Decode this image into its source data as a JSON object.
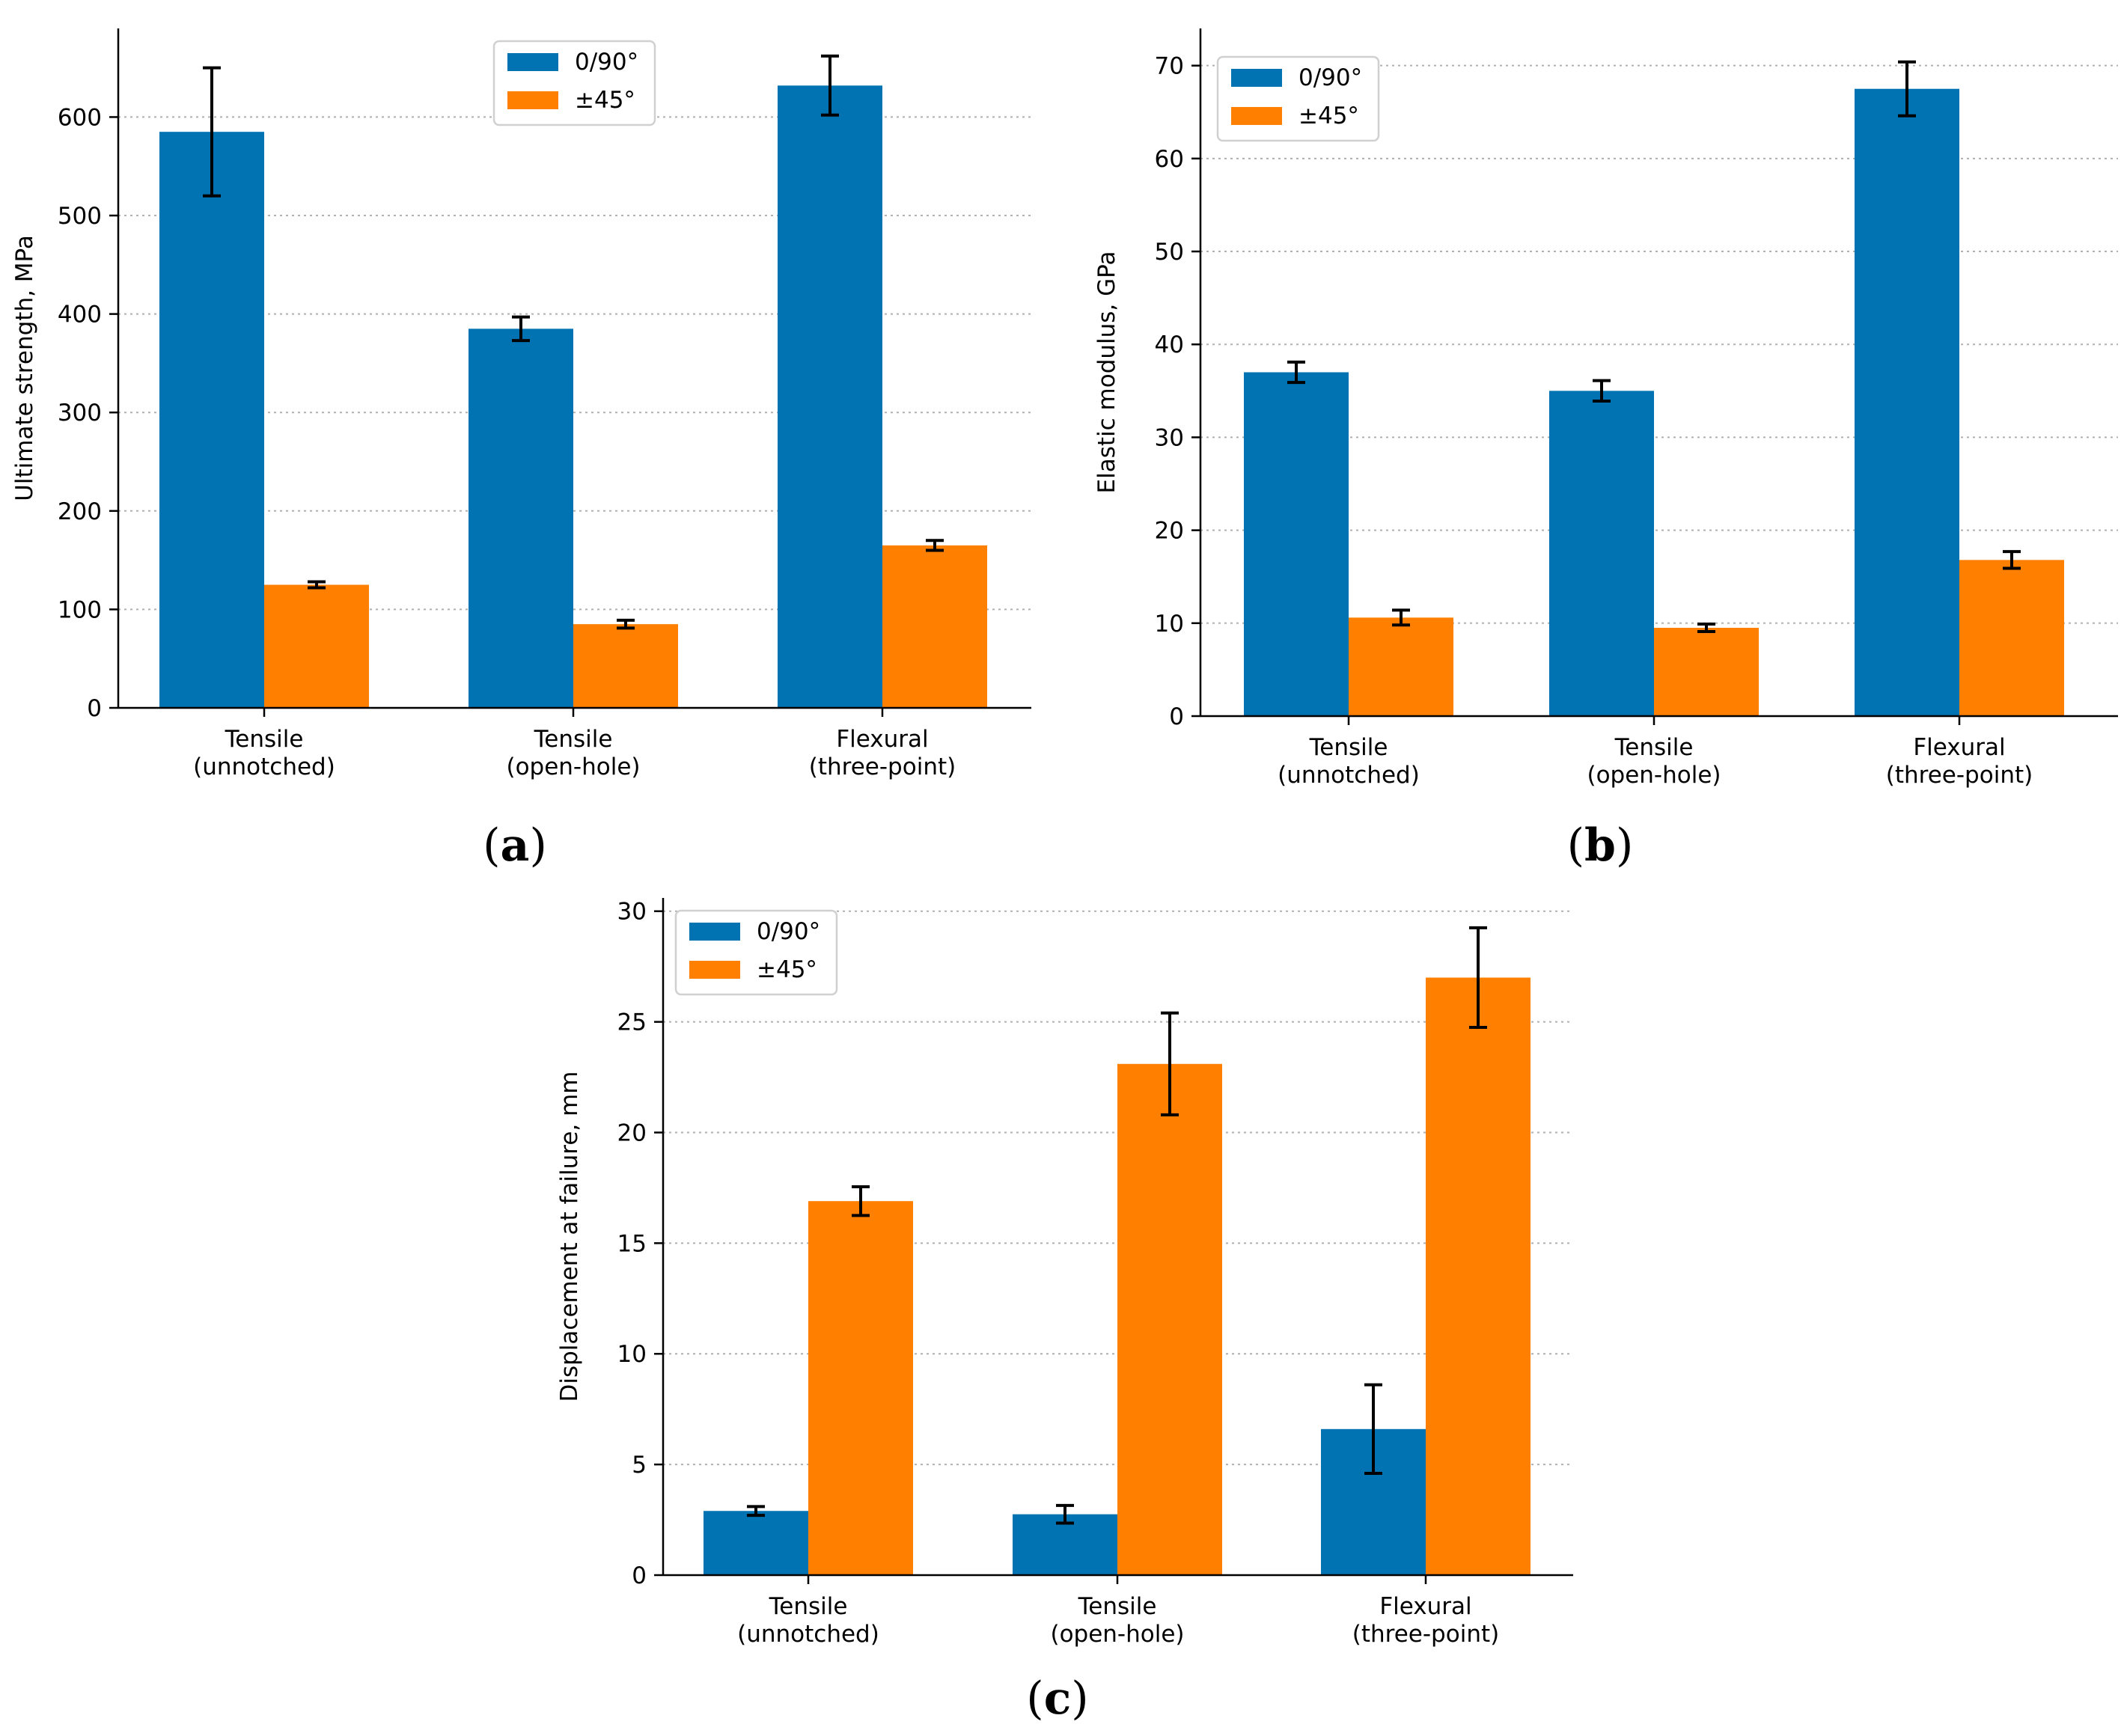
{
  "legend_labels": [
    "0/90°",
    "±45°"
  ],
  "chart_data": [
    {
      "panel": "a",
      "type": "bar",
      "categories": [
        [
          "Tensile",
          "(unnotched)"
        ],
        [
          "Tensile",
          "(open-hole)"
        ],
        [
          "Flexural",
          "(three-point)"
        ]
      ],
      "ylabel": "Ultimate strength, MPa",
      "ylim": [
        0,
        690
      ],
      "yticks": [
        0,
        100,
        200,
        300,
        400,
        500,
        600
      ],
      "series": [
        {
          "name": "0/90°",
          "color": "#0173b2",
          "values": [
            585,
            385,
            632
          ],
          "errors": [
            65,
            12,
            30
          ]
        },
        {
          "name": "±45°",
          "color": "#ff7f00",
          "values": [
            125,
            85,
            165
          ],
          "errors": [
            3,
            4,
            5
          ]
        }
      ],
      "grid": "horizontal-dotted",
      "legend": "top-center"
    },
    {
      "panel": "b",
      "type": "bar",
      "categories": [
        [
          "Tensile",
          "(unnotched)"
        ],
        [
          "Tensile",
          "(open-hole)"
        ],
        [
          "Flexural",
          "(three-point)"
        ]
      ],
      "ylabel": "Elastic modulus, GPa",
      "ylim": [
        0,
        74
      ],
      "yticks": [
        0,
        10,
        20,
        30,
        40,
        50,
        60,
        70
      ],
      "series": [
        {
          "name": "0/90°",
          "color": "#0173b2",
          "values": [
            37,
            35,
            67.5
          ],
          "errors": [
            1.1,
            1.1,
            2.9
          ]
        },
        {
          "name": "±45°",
          "color": "#ff7f00",
          "values": [
            10.6,
            9.5,
            16.8
          ],
          "errors": [
            0.8,
            0.4,
            0.9
          ]
        }
      ],
      "grid": "horizontal-dotted",
      "legend": "top-left"
    },
    {
      "panel": "c",
      "type": "bar",
      "categories": [
        [
          "Tensile",
          "(unnotched)"
        ],
        [
          "Tensile",
          "(open-hole)"
        ],
        [
          "Flexural",
          "(three-point)"
        ]
      ],
      "ylabel": "Displacement at failure, mm",
      "ylim": [
        0,
        30.6
      ],
      "yticks": [
        0,
        5,
        10,
        15,
        20,
        25,
        30
      ],
      "series": [
        {
          "name": "0/90°",
          "color": "#0173b2",
          "values": [
            2.9,
            2.75,
            6.6
          ],
          "errors": [
            0.2,
            0.4,
            2.0
          ]
        },
        {
          "name": "±45°",
          "color": "#ff7f00",
          "values": [
            16.9,
            23.1,
            27.0
          ],
          "errors": [
            0.65,
            2.3,
            2.25
          ]
        }
      ],
      "grid": "horizontal-dotted",
      "legend": "top-left"
    }
  ]
}
